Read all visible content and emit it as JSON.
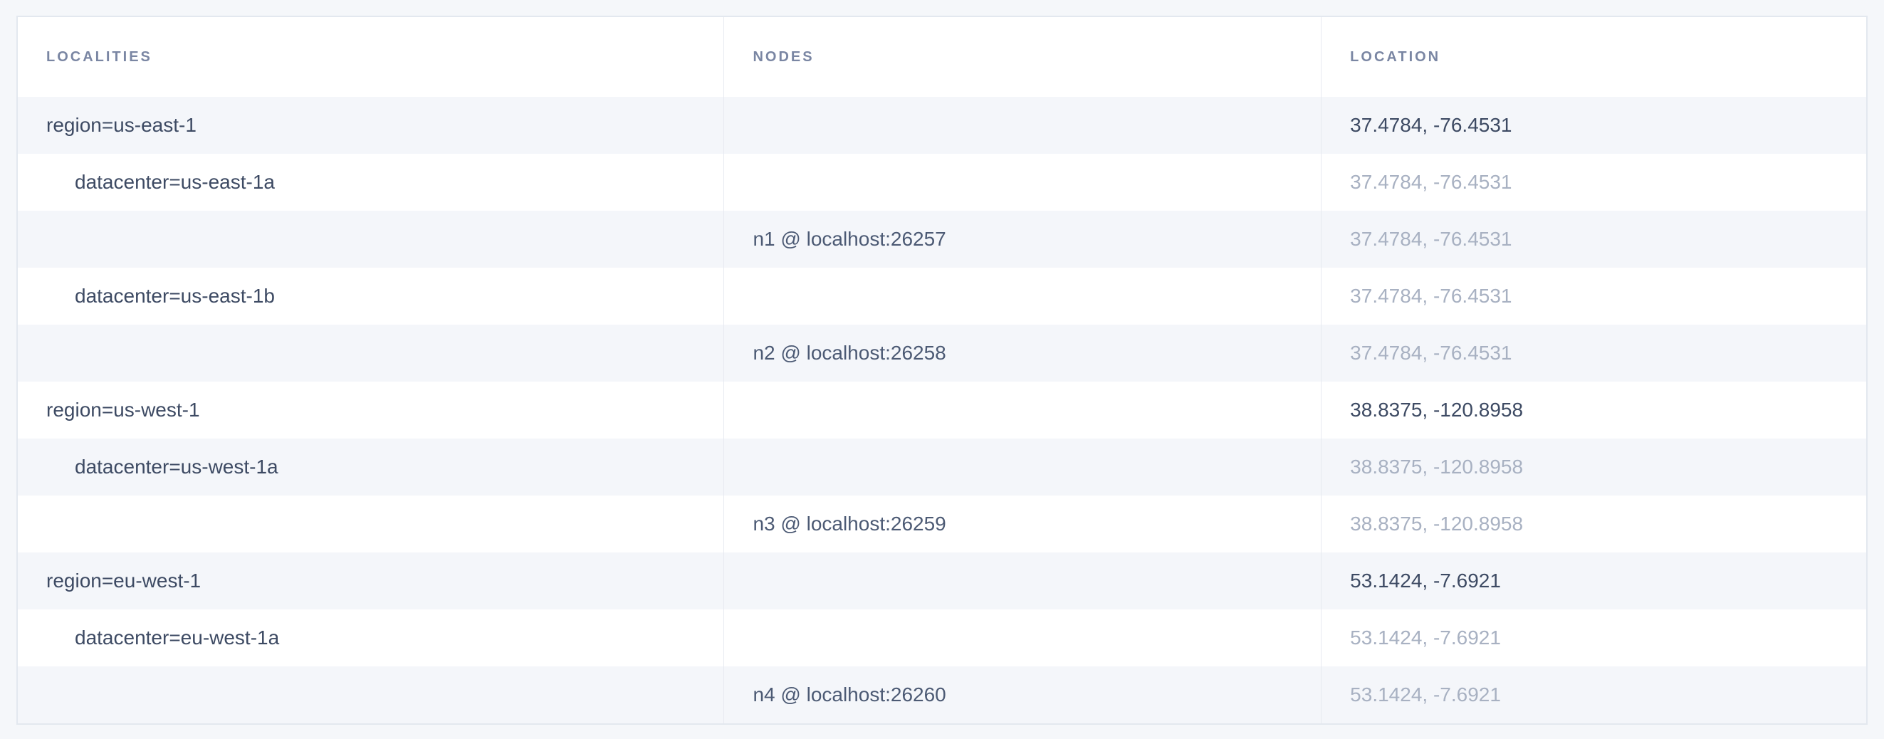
{
  "colors": {
    "page_bg": "#f5f7fa",
    "table_bg": "#ffffff",
    "row_shade": "#f4f6fa",
    "outer_border": "#e3e8ef",
    "col_border": "#e7eaf1",
    "header_text": "#7a86a3",
    "text_dark": "#3d4a63",
    "text_node": "#4c5a74",
    "text_light": "#a8b1c2"
  },
  "table": {
    "columns": [
      {
        "label": "Localities"
      },
      {
        "label": "Nodes"
      },
      {
        "label": "Location"
      }
    ],
    "rows": [
      {
        "locality": "region=us-east-1",
        "indent": 0,
        "node": "",
        "location": "37.4784, -76.4531",
        "location_emphasis": "dark"
      },
      {
        "locality": "datacenter=us-east-1a",
        "indent": 1,
        "node": "",
        "location": "37.4784, -76.4531",
        "location_emphasis": "light"
      },
      {
        "locality": "",
        "indent": 0,
        "node": "n1 @ localhost:26257",
        "location": "37.4784, -76.4531",
        "location_emphasis": "light"
      },
      {
        "locality": "datacenter=us-east-1b",
        "indent": 1,
        "node": "",
        "location": "37.4784, -76.4531",
        "location_emphasis": "light"
      },
      {
        "locality": "",
        "indent": 0,
        "node": "n2 @ localhost:26258",
        "location": "37.4784, -76.4531",
        "location_emphasis": "light"
      },
      {
        "locality": "region=us-west-1",
        "indent": 0,
        "node": "",
        "location": "38.8375, -120.8958",
        "location_emphasis": "dark"
      },
      {
        "locality": "datacenter=us-west-1a",
        "indent": 1,
        "node": "",
        "location": "38.8375, -120.8958",
        "location_emphasis": "light"
      },
      {
        "locality": "",
        "indent": 0,
        "node": "n3 @ localhost:26259",
        "location": "38.8375, -120.8958",
        "location_emphasis": "light"
      },
      {
        "locality": "region=eu-west-1",
        "indent": 0,
        "node": "",
        "location": "53.1424, -7.6921",
        "location_emphasis": "dark"
      },
      {
        "locality": "datacenter=eu-west-1a",
        "indent": 1,
        "node": "",
        "location": "53.1424, -7.6921",
        "location_emphasis": "light"
      },
      {
        "locality": "",
        "indent": 0,
        "node": "n4 @ localhost:26260",
        "location": "53.1424, -7.6921",
        "location_emphasis": "light"
      }
    ]
  }
}
